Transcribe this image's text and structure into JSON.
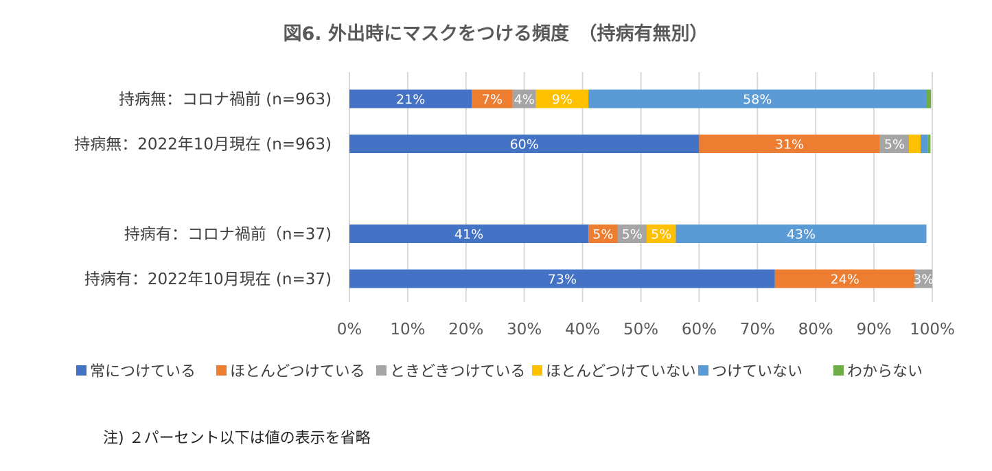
{
  "chart_data": {
    "type": "bar",
    "orientation": "horizontal",
    "stacked": "percent",
    "title": "図6. 外出時にマスクをつける頻度　（持病有無別）",
    "categories": [
      "持病無：コロナ禍前 (n=963)",
      "持病無：2022年10月現在 (n=963)",
      "持病有：コロナ禍前（n=37)",
      "持病有：2022年10月現在 (n=37)"
    ],
    "category_gaps": [
      0,
      0,
      1,
      0
    ],
    "series": [
      {
        "name": "常につけている",
        "color": "#4472C4",
        "values": [
          21,
          60,
          41,
          73
        ],
        "labels": [
          "21%",
          "60%",
          "41%",
          "73%"
        ]
      },
      {
        "name": "ほとんどつけている",
        "color": "#ED7D31",
        "values": [
          7,
          31,
          5,
          24
        ],
        "labels": [
          "7%",
          "31%",
          "5%",
          "24%"
        ]
      },
      {
        "name": "ときどきつけている",
        "color": "#A5A5A5",
        "values": [
          4,
          5,
          5,
          3
        ],
        "labels": [
          "4%",
          "5%",
          "5%",
          "3%"
        ]
      },
      {
        "name": "ほとんどつけていない",
        "color": "#FFC000",
        "values": [
          9,
          2,
          5,
          0
        ],
        "labels": [
          "9%",
          "",
          "5%",
          ""
        ]
      },
      {
        "name": "つけていない",
        "color": "#5B9BD5",
        "values": [
          58,
          1.2,
          43,
          0
        ],
        "labels": [
          "58%",
          "",
          "43%",
          ""
        ]
      },
      {
        "name": "わからない",
        "color": "#70AD47",
        "values": [
          0.8,
          0.5,
          0,
          0
        ],
        "labels": [
          "",
          "",
          "",
          ""
        ]
      }
    ],
    "xlim": [
      0,
      100
    ],
    "xticks": [
      "0%",
      "10%",
      "20%",
      "30%",
      "40%",
      "50%",
      "60%",
      "70%",
      "80%",
      "90%",
      "100%"
    ],
    "grid": true,
    "legend_position": "bottom"
  },
  "note": "注) ２パーセント以下は値の表示を省略"
}
